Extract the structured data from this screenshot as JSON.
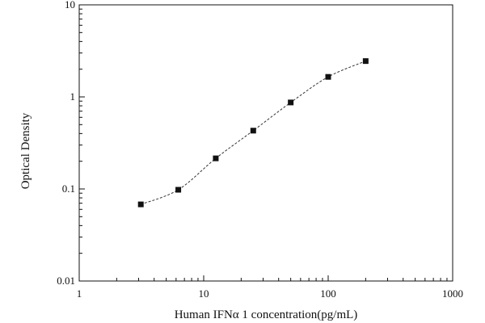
{
  "chart_data": {
    "type": "scatter",
    "xlabel": "Human IFNα 1 concentration(pg/mL)",
    "ylabel": "Optical Density",
    "x_scale": "log",
    "y_scale": "log",
    "xlim": [
      1,
      1000
    ],
    "ylim": [
      0.01,
      10
    ],
    "x_ticks": [
      "1",
      "10",
      "100",
      "1000"
    ],
    "y_ticks": [
      "0.01",
      "0.1",
      "1",
      "10"
    ],
    "grid": false,
    "legend": "none",
    "marker": "square",
    "colors": {
      "marker": "#111111",
      "axis": "#111111",
      "fit_line": "#333333"
    },
    "series": [
      {
        "x": [
          3.125,
          6.25,
          12.5,
          25,
          50,
          100,
          200
        ],
        "y": [
          0.068,
          0.098,
          0.215,
          0.43,
          0.87,
          1.65,
          2.45
        ]
      }
    ],
    "fit_curve": "dashed smooth line through points"
  }
}
